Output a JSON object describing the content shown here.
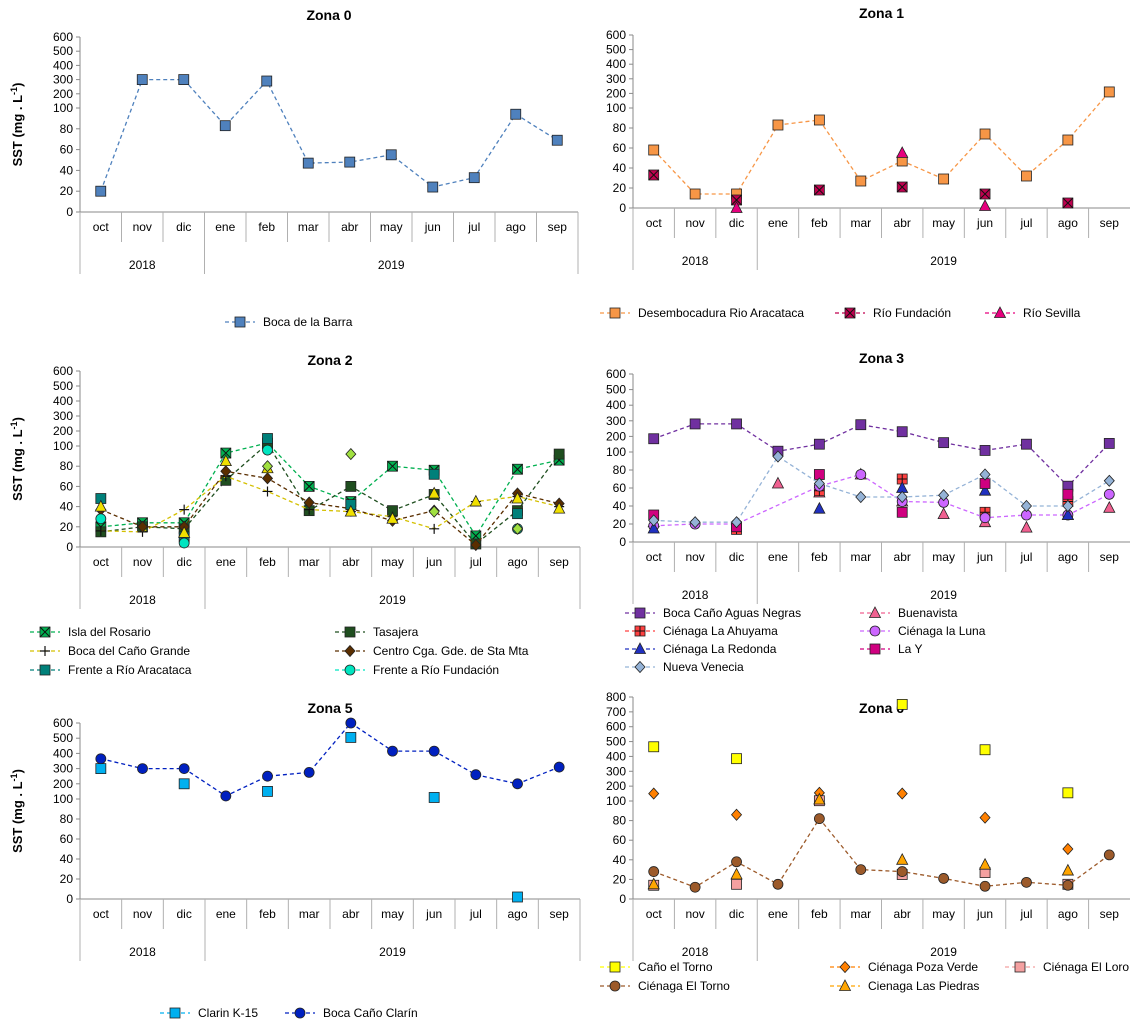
{
  "shared": {
    "months": [
      "oct",
      "nov",
      "dic",
      "ene",
      "feb",
      "mar",
      "abr",
      "may",
      "jun",
      "jul",
      "ago",
      "sep"
    ],
    "years": [
      "2018",
      "2019"
    ],
    "ylabel_main": "SST (mg . L",
    "ylabel_sup": "-1",
    "ylabel_end": ")"
  },
  "chart_data": [
    {
      "type": "line",
      "title": "Zona 0",
      "ylabel": "SST (mg . L-1)",
      "y_ticks_upper": [
        600,
        500,
        400,
        300,
        200,
        100
      ],
      "y_ticks_lower": [
        100,
        80,
        60,
        40,
        20,
        0
      ],
      "axis_break": 100,
      "series": [
        {
          "name": "Boca de la Barra",
          "color": "#4f81bd",
          "marker": "square",
          "values": [
            20,
            300,
            300,
            83,
            290,
            47,
            48,
            55,
            24,
            33,
            94,
            69
          ]
        }
      ]
    },
    {
      "type": "line",
      "title": "Zona 1",
      "ylabel": "",
      "y_ticks_upper": [
        600,
        500,
        400,
        300,
        200,
        100
      ],
      "y_ticks_lower": [
        100,
        80,
        60,
        40,
        20,
        0
      ],
      "axis_break": 100,
      "series": [
        {
          "name": "Desembocadura Rio Aracataca",
          "color": "#f79646",
          "marker": "square",
          "values": [
            58,
            14,
            14,
            83,
            88,
            27,
            47,
            29,
            74,
            32,
            68,
            210
          ]
        },
        {
          "name": "Río Fundación",
          "color": "#c0004f",
          "marker": "xsquare",
          "values": [
            33,
            null,
            8,
            null,
            18,
            null,
            21,
            null,
            14,
            null,
            5,
            null
          ]
        },
        {
          "name": "Río Sevilla",
          "color": "#e6007e",
          "marker": "triangle",
          "values": [
            null,
            null,
            0,
            null,
            null,
            null,
            55,
            null,
            2,
            null,
            null,
            null
          ]
        }
      ]
    },
    {
      "type": "line",
      "title": "Zona 2",
      "ylabel": "SST (mg . L-1)",
      "y_ticks_upper": [
        600,
        500,
        400,
        300,
        200,
        100
      ],
      "y_ticks_lower": [
        100,
        80,
        60,
        40,
        20,
        0
      ],
      "axis_break": 100,
      "series": [
        {
          "name": "Isla del Rosario",
          "color": "#00b050",
          "marker": "xsquare",
          "values": [
            20,
            24,
            24,
            93,
            120,
            60,
            45,
            80,
            76,
            11,
            77,
            86
          ]
        },
        {
          "name": "Tasajera",
          "color": "#1f4e1f",
          "marker": "square",
          "values": [
            15,
            20,
            18,
            66,
            115,
            36,
            60,
            36,
            52,
            3,
            36,
            92
          ]
        },
        {
          "name": "Boca del Caño Grande",
          "color": "#d4c000",
          "marker": "plus",
          "values": [
            16,
            15,
            37,
            70,
            55,
            37,
            35,
            30,
            18,
            45,
            50,
            40
          ]
        },
        {
          "name": "Centro Cga. Gde. de Sta Mta",
          "color": "#5a2e00",
          "marker": "diamond",
          "values": [
            37,
            20,
            20,
            75,
            68,
            44,
            38,
            26,
            36,
            2,
            53,
            43
          ]
        },
        {
          "name": "Frente a Río Aracataca",
          "color": "#00807a",
          "marker": "square",
          "values": [
            48,
            null,
            10,
            null,
            150,
            null,
            42,
            null,
            72,
            null,
            33,
            null
          ]
        },
        {
          "name": "Frente a Río Fundación",
          "color": "#00e5c0",
          "marker": "circle",
          "values": [
            28,
            null,
            4,
            null,
            96,
            null,
            null,
            null,
            null,
            null,
            18,
            null
          ]
        },
        {
          "name": "",
          "color": "#f0e000",
          "marker": "triangle",
          "values": [
            40,
            null,
            14,
            85,
            78,
            null,
            35,
            28,
            53,
            45,
            48,
            38
          ]
        },
        {
          "name": "",
          "color": "#a0e040",
          "marker": "diamond",
          "values": [
            null,
            null,
            null,
            null,
            80,
            null,
            92,
            null,
            35,
            null,
            18,
            null
          ]
        }
      ]
    },
    {
      "type": "line",
      "title": "Zona 3",
      "ylabel": "",
      "y_ticks_upper": [
        600,
        500,
        400,
        300,
        200,
        100
      ],
      "y_ticks_lower": [
        100,
        80,
        60,
        40,
        20,
        0
      ],
      "axis_break": 100,
      "series": [
        {
          "name": "Boca Caño Aguas Negras",
          "color": "#7030a0",
          "marker": "square",
          "values": [
            185,
            280,
            280,
            105,
            150,
            275,
            230,
            160,
            110,
            150,
            62,
            155
          ]
        },
        {
          "name": "Buenavista",
          "color": "#f06090",
          "marker": "triangle",
          "values": [
            22,
            null,
            null,
            65,
            55,
            75,
            45,
            31,
            22,
            16,
            30,
            38
          ]
        },
        {
          "name": "Ciénaga La Ahuyama",
          "color": "#ff4040",
          "marker": "plussquare",
          "values": [
            null,
            null,
            14,
            null,
            57,
            null,
            70,
            null,
            33,
            null,
            45,
            null
          ]
        },
        {
          "name": "Ciénaga la Luna",
          "color": "#cc66ff",
          "marker": "circle",
          "values": [
            18,
            20,
            20,
            null,
            62,
            75,
            45,
            44,
            27,
            30,
            30,
            53
          ]
        },
        {
          "name": "Ciénaga La Redonda",
          "color": "#2030c0",
          "marker": "triangle",
          "values": [
            15,
            null,
            null,
            null,
            37,
            null,
            60,
            null,
            57,
            null,
            30,
            null
          ]
        },
        {
          "name": "La Y",
          "color": "#d00080",
          "marker": "square",
          "values": [
            30,
            null,
            17,
            null,
            75,
            null,
            33,
            null,
            65,
            null,
            53,
            null
          ]
        },
        {
          "name": "Nueva Venecia",
          "color": "#95b3d7",
          "marker": "diamond",
          "values": [
            24,
            22,
            22,
            95,
            65,
            50,
            50,
            52,
            75,
            40,
            40,
            68
          ]
        }
      ]
    },
    {
      "type": "line",
      "title": "Zona 5",
      "ylabel": "SST (mg . L-1)",
      "y_ticks_upper": [
        600,
        500,
        400,
        300,
        200,
        100
      ],
      "y_ticks_lower": [
        100,
        80,
        60,
        40,
        20,
        0
      ],
      "axis_break": 100,
      "series": [
        {
          "name": "Clarin K-15",
          "color": "#00b0f0",
          "marker": "square",
          "values": [
            300,
            null,
            200,
            null,
            150,
            null,
            505,
            null,
            110,
            null,
            2,
            null
          ]
        },
        {
          "name": "Boca Caño Clarín",
          "color": "#0020c0",
          "marker": "circle",
          "values": [
            365,
            300,
            300,
            120,
            250,
            275,
            600,
            415,
            415,
            260,
            200,
            310
          ]
        }
      ]
    },
    {
      "type": "line",
      "title": "Zona 6",
      "ylabel": "",
      "y_ticks_upper": [
        800,
        700,
        600,
        500,
        400,
        300,
        200,
        100
      ],
      "y_ticks_lower": [
        100,
        80,
        60,
        40,
        20,
        0
      ],
      "axis_break": 100,
      "series": [
        {
          "name": "Caño el Torno",
          "color": "#ffff00",
          "marker": "square",
          "values": [
            465,
            null,
            385,
            null,
            null,
            null,
            750,
            null,
            445,
            null,
            155,
            null
          ]
        },
        {
          "name": "Ciénaga  Poza Verde",
          "color": "#ff8000",
          "marker": "diamond",
          "values": [
            150,
            null,
            86,
            null,
            155,
            null,
            150,
            null,
            83,
            null,
            51,
            null
          ]
        },
        {
          "name": "Ciénaga El Loro",
          "color": "#f4a0a0",
          "marker": "square",
          "values": [
            14,
            null,
            15,
            null,
            102,
            null,
            25,
            null,
            27,
            null,
            15,
            null
          ]
        },
        {
          "name": "Ciénaga El Torno",
          "color": "#9c5a2a",
          "marker": "circle",
          "values": [
            28,
            12,
            38,
            15,
            82,
            30,
            28,
            21,
            13,
            17,
            14,
            45
          ]
        },
        {
          "name": "Cienaga Las Piedras",
          "color": "#ffa500",
          "marker": "triangle",
          "values": [
            15,
            null,
            25,
            null,
            110,
            null,
            40,
            null,
            35,
            null,
            29,
            null
          ]
        }
      ]
    }
  ]
}
